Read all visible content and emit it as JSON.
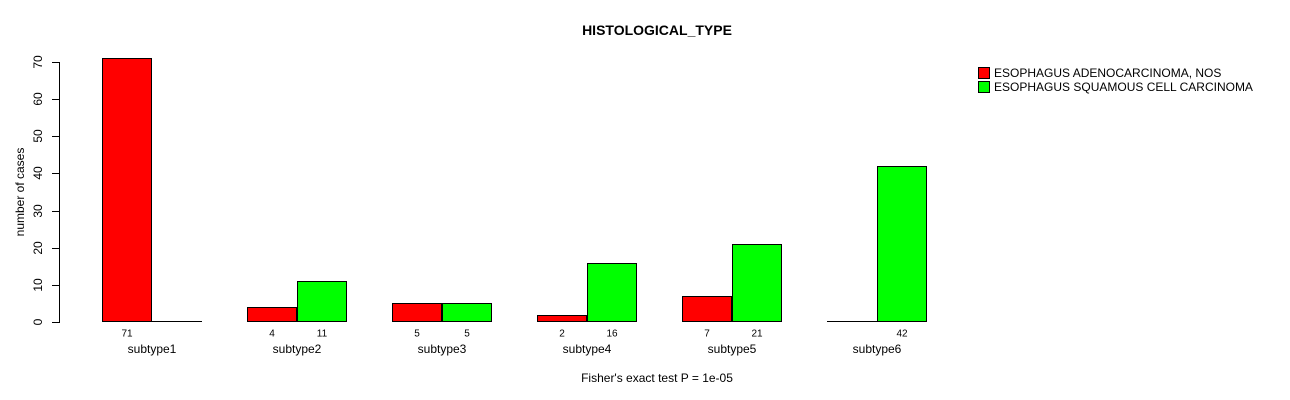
{
  "chart_data": {
    "type": "bar",
    "title": "HISTOLOGICAL_TYPE",
    "ylabel": "number of cases",
    "xlabel": "",
    "ylim": [
      0,
      70
    ],
    "yticks": [
      0,
      10,
      20,
      30,
      40,
      50,
      60,
      70
    ],
    "grid": false,
    "legend_position": "right-inside",
    "categories": [
      "subtype1",
      "subtype2",
      "subtype3",
      "subtype4",
      "subtype5",
      "subtype6"
    ],
    "series": [
      {
        "name": "ESOPHAGUS ADENOCARCINOMA, NOS",
        "color": "#ff0000",
        "values": [
          71,
          4,
          5,
          2,
          7,
          0
        ]
      },
      {
        "name": "ESOPHAGUS SQUAMOUS CELL CARCINOMA",
        "color": "#00ff00",
        "values": [
          0,
          11,
          5,
          16,
          21,
          42
        ]
      }
    ],
    "bar_value_labels": {
      "subtype1": [
        "71",
        ""
      ],
      "subtype2": [
        "4",
        "11"
      ],
      "subtype3": [
        "5",
        "5"
      ],
      "subtype4": [
        "2",
        "16"
      ],
      "subtype5": [
        "7",
        "21"
      ],
      "subtype6": [
        "",
        "42"
      ]
    },
    "annotation": "Fisher's exact test P = 1e-05",
    "axis_color": "#000000",
    "bar_border_color": "#000000",
    "background_color": "#ffffff"
  }
}
